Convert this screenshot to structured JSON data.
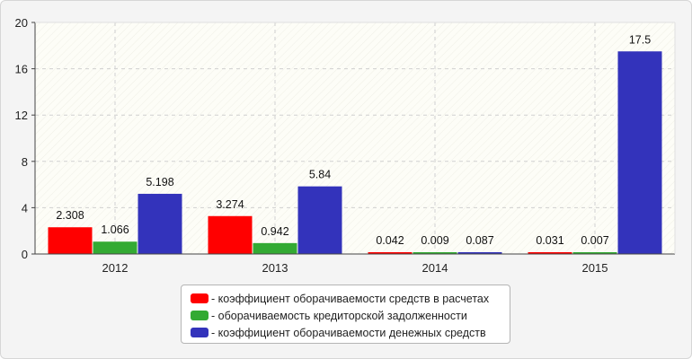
{
  "chart_data": {
    "type": "bar",
    "categories": [
      "2012",
      "2013",
      "2014",
      "2015"
    ],
    "series": [
      {
        "name": "- коэффициент оборачиваемости средств в расчетах",
        "color": "#ff0000",
        "values": [
          2.308,
          3.274,
          0.042,
          0.031
        ],
        "labels": [
          "2.308",
          "3.274",
          "0.042",
          "0.031"
        ]
      },
      {
        "name": "- оборачиваемость кредиторской задолженности",
        "color": "#33aa33",
        "values": [
          1.066,
          0.942,
          0.009,
          0.007
        ],
        "labels": [
          "1.066",
          "0.942",
          "0.009",
          "0.007"
        ]
      },
      {
        "name": "- коэффициент оборачиваемости денежных средств",
        "color": "#3333bb",
        "values": [
          5.198,
          5.84,
          0.087,
          17.5
        ],
        "labels": [
          "5.198",
          "5.84",
          "0.087",
          "17.5"
        ]
      }
    ],
    "yticks": [
      "0",
      "4",
      "8",
      "12",
      "16",
      "20"
    ],
    "ylim": [
      0,
      20
    ],
    "grid": true,
    "legend_position": "bottom-center"
  }
}
